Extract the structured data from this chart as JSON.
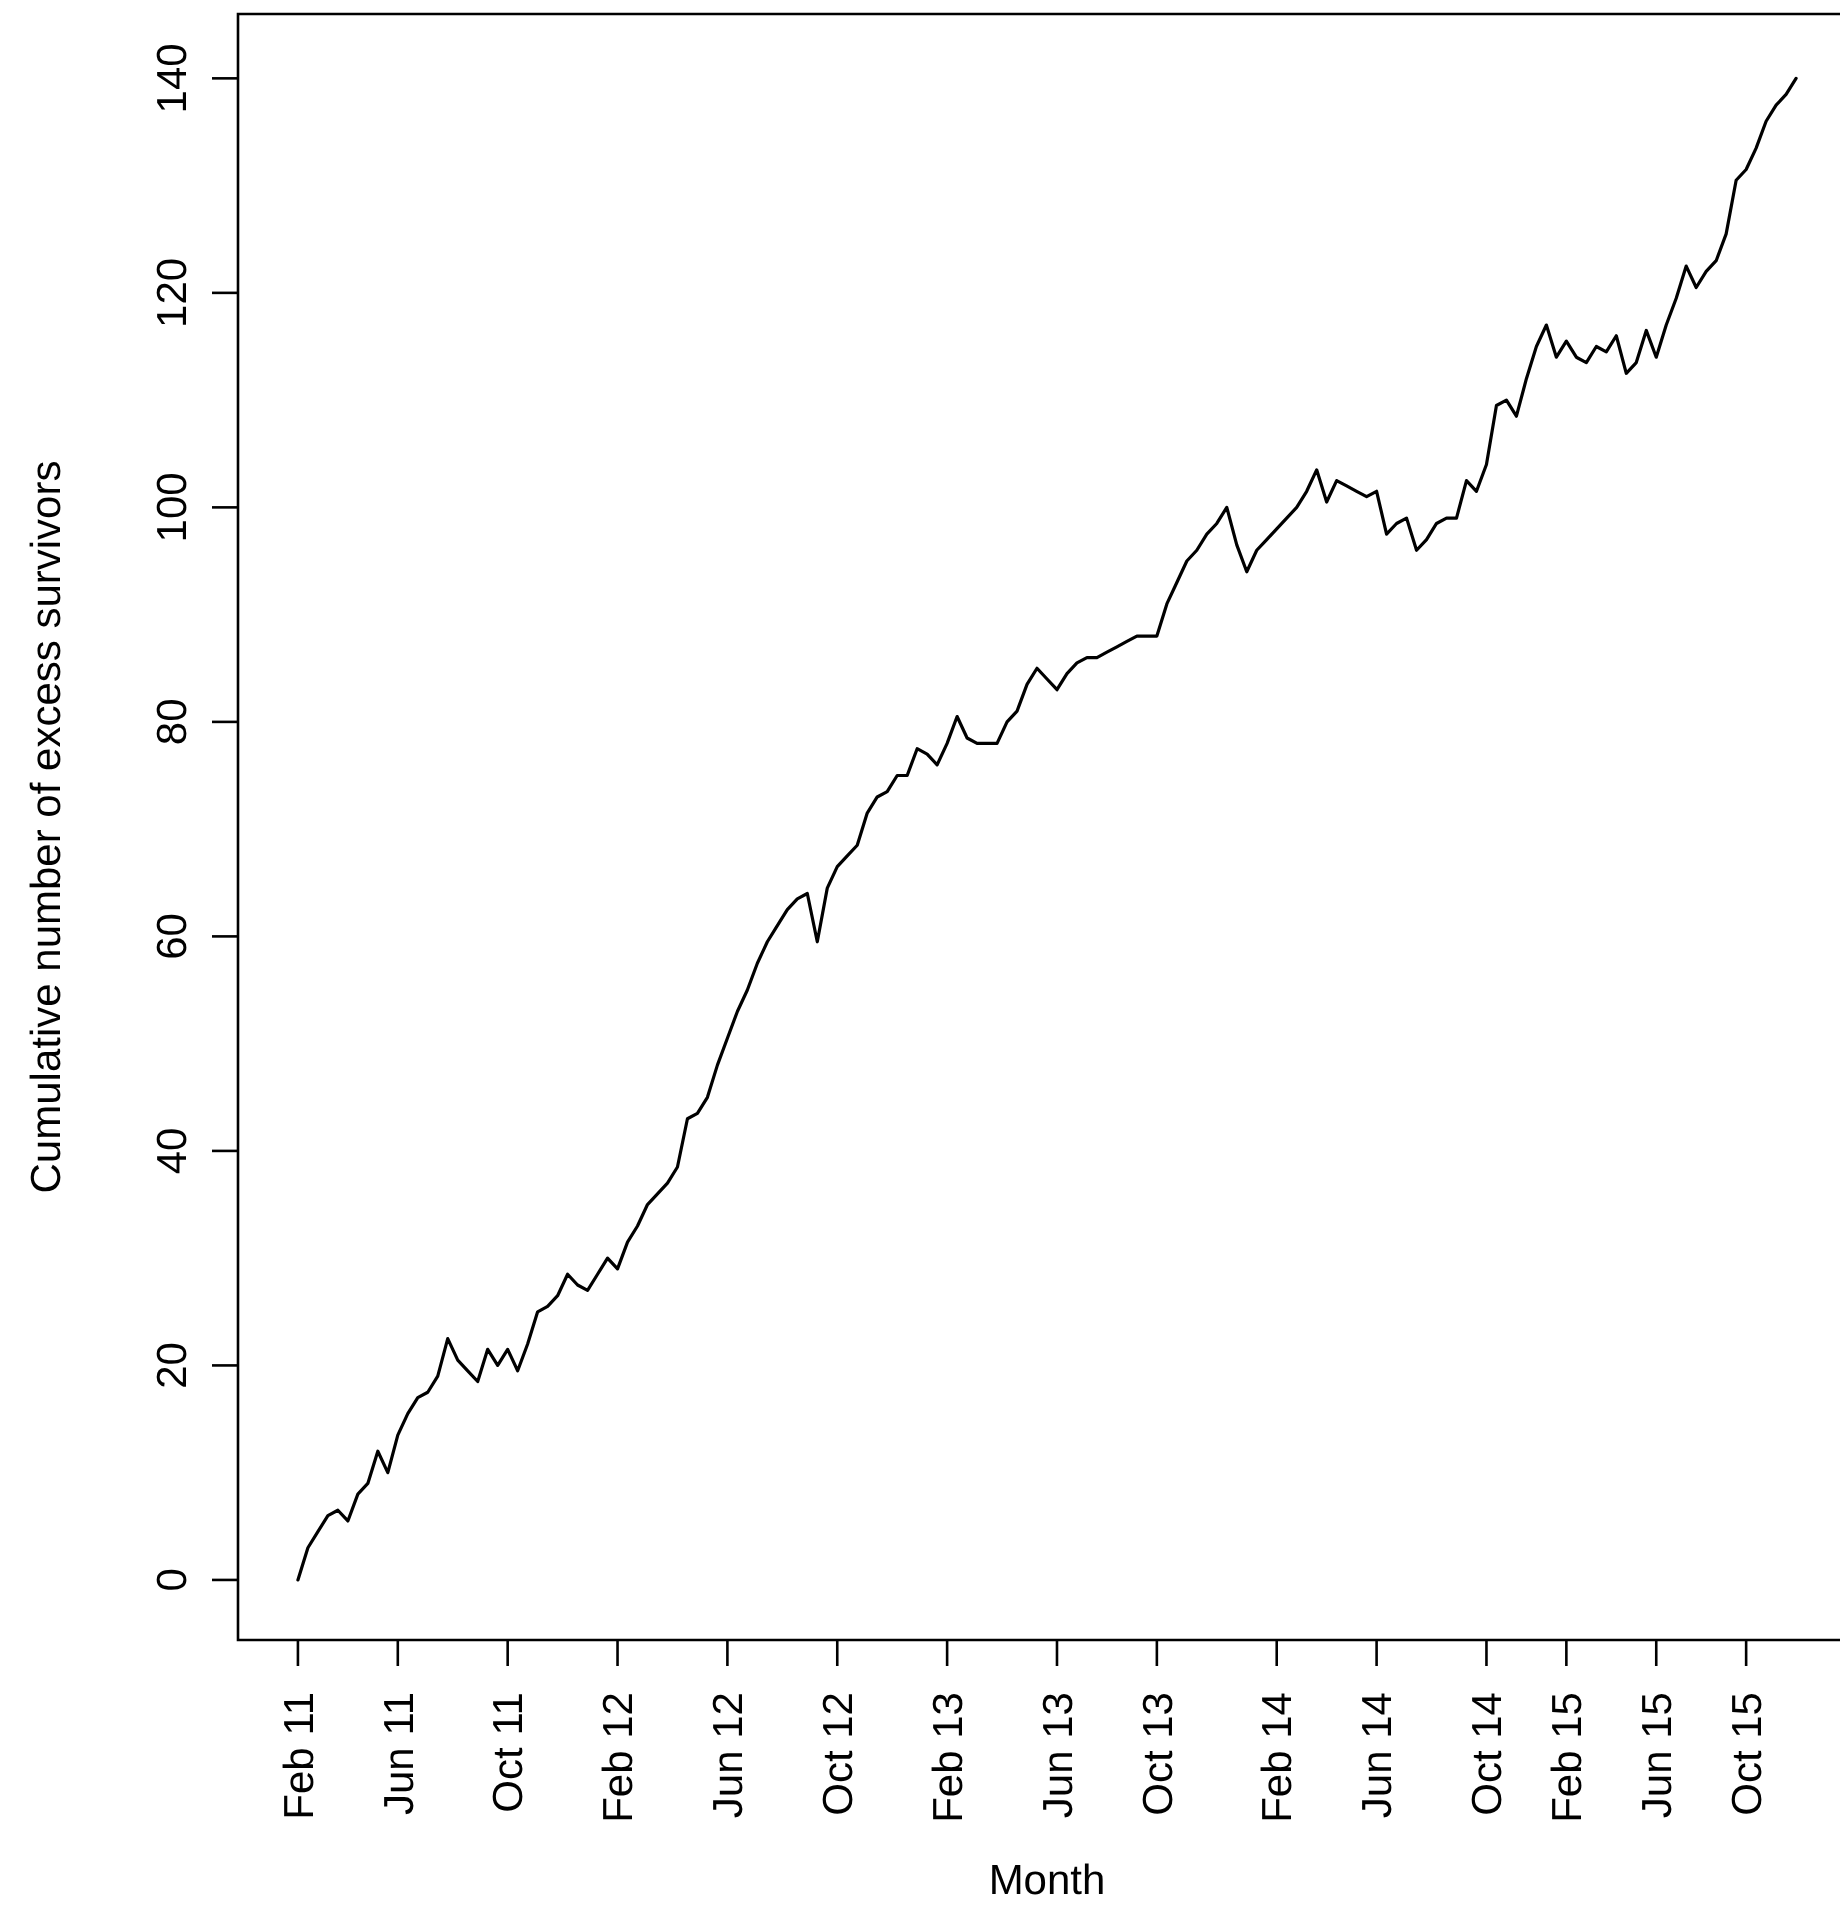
{
  "chart_data": {
    "type": "line",
    "xlabel": "Month",
    "ylabel": "Cumulative number of excess survivors",
    "categories": [
      "Feb 11",
      null,
      null,
      null,
      null,
      null,
      null,
      null,
      null,
      null,
      "Jun 11",
      null,
      null,
      null,
      null,
      null,
      null,
      null,
      null,
      null,
      null,
      "Oct 11",
      null,
      null,
      null,
      null,
      null,
      null,
      null,
      null,
      null,
      null,
      "Feb 12",
      null,
      null,
      null,
      null,
      null,
      null,
      null,
      null,
      null,
      null,
      "Jun 12",
      null,
      null,
      null,
      null,
      null,
      null,
      null,
      null,
      null,
      null,
      "Oct 12",
      null,
      null,
      null,
      null,
      null,
      null,
      null,
      null,
      null,
      null,
      "Feb 13",
      null,
      null,
      null,
      null,
      null,
      null,
      null,
      null,
      null,
      null,
      "Jun 13",
      null,
      null,
      null,
      null,
      null,
      null,
      null,
      null,
      null,
      "Oct 13",
      null,
      null,
      null,
      null,
      null,
      null,
      null,
      null,
      null,
      null,
      null,
      "Feb 14",
      null,
      null,
      null,
      null,
      null,
      null,
      null,
      null,
      null,
      "Jun 14",
      null,
      null,
      null,
      null,
      null,
      null,
      null,
      null,
      null,
      null,
      "Oct 14",
      null,
      null,
      null,
      null,
      null,
      null,
      null,
      "Feb 15",
      null,
      null,
      null,
      null,
      null,
      null,
      null,
      null,
      "Jun 15",
      null,
      null,
      null,
      null,
      null,
      null,
      null,
      null,
      "Oct 15",
      null,
      null,
      null,
      null,
      null
    ],
    "ylim": [
      -5.6,
      146
    ],
    "yticks": [
      0,
      20,
      40,
      60,
      80,
      100,
      120,
      140
    ],
    "color": "#000000",
    "values": [
      0,
      3,
      4.5,
      6,
      6.5,
      5.5,
      8,
      9,
      12,
      10,
      13.5,
      15.5,
      17,
      17.5,
      19,
      22.5,
      20.5,
      19.5,
      18.5,
      21.5,
      20,
      21.5,
      19.5,
      22,
      25,
      25.5,
      26.5,
      28.5,
      27.5,
      27,
      28.5,
      30,
      29,
      31.5,
      33,
      35,
      36,
      37,
      38.5,
      43,
      43.5,
      45,
      48,
      50.5,
      53,
      55,
      57.5,
      59.5,
      61,
      62.5,
      63.5,
      64,
      59.5,
      64.5,
      66.5,
      67.5,
      68.5,
      71.5,
      73,
      73.5,
      75,
      75,
      77.5,
      77,
      76,
      78,
      80.5,
      78.5,
      78,
      78,
      78,
      80,
      81,
      83.5,
      85,
      84,
      83,
      84.5,
      85.5,
      86,
      86,
      86.5,
      87,
      87.5,
      88,
      88,
      88,
      91,
      93,
      95,
      96,
      97.5,
      98.5,
      100,
      96.5,
      94,
      96,
      97,
      98,
      99,
      100,
      101.5,
      103.5,
      100.5,
      102.5,
      102,
      101.5,
      101,
      101.5,
      97.5,
      98.5,
      99,
      96,
      97,
      98.5,
      99,
      99,
      102.5,
      101.5,
      104,
      109.5,
      110,
      108.5,
      112,
      115,
      117,
      114,
      115.5,
      114,
      113.5,
      115,
      114.5,
      116,
      112.5,
      113.5,
      116.5,
      114,
      117,
      119.5,
      122.5,
      120.5,
      122,
      123,
      125.5,
      130.5,
      131.5,
      133.5,
      136,
      137.5,
      138.5,
      140
    ]
  }
}
